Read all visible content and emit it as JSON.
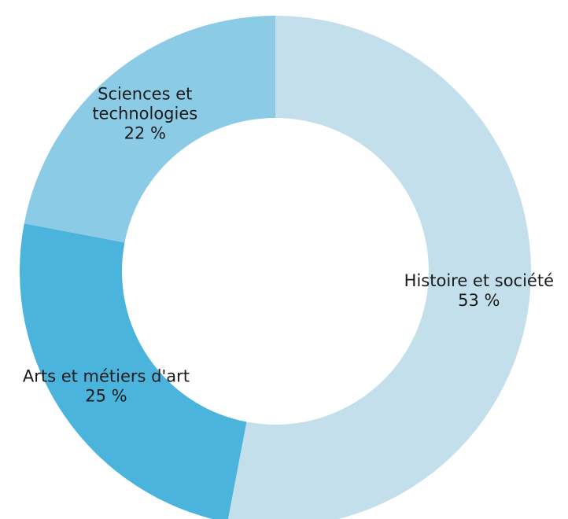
{
  "chart_data": {
    "type": "pie",
    "donut": true,
    "title": "",
    "legend": "none",
    "slices": [
      {
        "label": [
          "Histoire et société"
        ],
        "value_text": "53 %",
        "value": 53,
        "color": "#c2dfeb"
      },
      {
        "label": [
          "Arts et métiers d'art"
        ],
        "value_text": "25 %",
        "value": 25,
        "color": "#4bb4dd"
      },
      {
        "label": [
          "Sciences et",
          "technologies"
        ],
        "value_text": "22 %",
        "value": 22,
        "color": "#8ccbe6"
      }
    ]
  }
}
